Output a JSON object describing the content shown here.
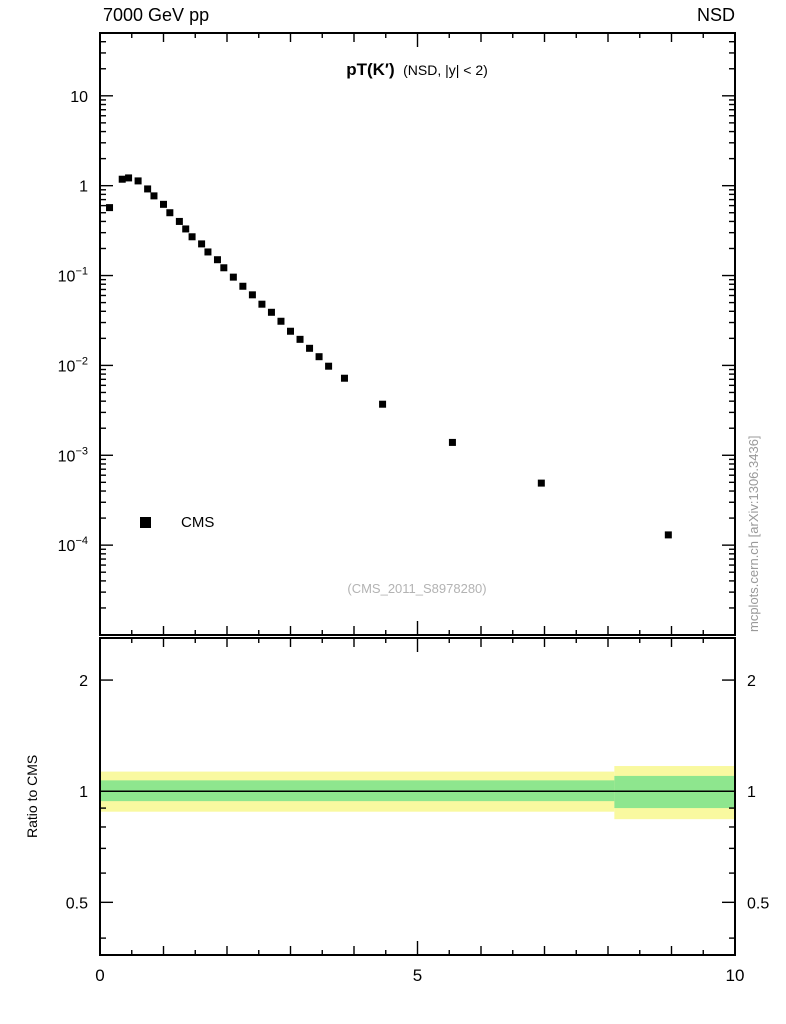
{
  "header": {
    "left": "7000 GeV pp",
    "right": "NSD"
  },
  "title": {
    "main": "pT(K′)",
    "sub": "(NSD, |y| < 2)"
  },
  "legend": {
    "label": "CMS"
  },
  "watermark": "(CMS_2011_S8978280)",
  "side_caption": "mcplots.cern.ch [arXiv:1306.3436]",
  "colors": {
    "marker": "#000000",
    "band_outer": "#f9f9a0",
    "band_inner": "#8ee68e",
    "frame": "#000000",
    "watermark": "#b3b3b3",
    "side_caption": "#999999"
  },
  "chart_data": {
    "type": "scatter",
    "title": "pT(K′) (NSD, |y| < 2)",
    "xlabel": "",
    "x_range": [
      0,
      10
    ],
    "x_ticks": [
      {
        "v": 0,
        "t": "0"
      },
      {
        "v": 5,
        "t": "5"
      },
      {
        "v": 10,
        "t": "10"
      }
    ],
    "legend_position": "lower-left",
    "grid": false,
    "panels": {
      "spectrum": {
        "y_scale": "log",
        "y_range": [
          1e-05,
          50
        ],
        "y_ticks": [
          {
            "v": 10,
            "t": "10"
          },
          {
            "v": 1,
            "t": "1"
          },
          {
            "v": 0.1,
            "t": "10",
            "e": "−1"
          },
          {
            "v": 0.01,
            "t": "10",
            "e": "−2"
          },
          {
            "v": 0.001,
            "t": "10",
            "e": "−3"
          },
          {
            "v": 0.0001,
            "t": "10",
            "e": "−4"
          }
        ],
        "series": [
          {
            "name": "CMS",
            "marker": "filled-square",
            "color": "#000000",
            "x": [
              0.15,
              0.35,
              0.45,
              0.6,
              0.75,
              0.85,
              1.0,
              1.1,
              1.25,
              1.35,
              1.45,
              1.6,
              1.7,
              1.85,
              1.95,
              2.1,
              2.25,
              2.4,
              2.55,
              2.7,
              2.85,
              3.0,
              3.15,
              3.3,
              3.45,
              3.6,
              3.85,
              4.45,
              5.55,
              6.95,
              8.95
            ],
            "y": [
              0.57,
              1.18,
              1.22,
              1.13,
              0.92,
              0.77,
              0.62,
              0.5,
              0.4,
              0.33,
              0.27,
              0.225,
              0.183,
              0.15,
              0.122,
              0.096,
              0.076,
              0.061,
              0.048,
              0.039,
              0.031,
              0.024,
              0.0195,
              0.0155,
              0.0125,
              0.0098,
              0.0072,
              0.0037,
              0.00139,
              0.00049,
              0.00013
            ]
          }
        ]
      },
      "ratio": {
        "ylabel": "Ratio to CMS",
        "y_scale": "log",
        "y_range": [
          0.36,
          2.6
        ],
        "y_ticks": [
          {
            "v": 0.5,
            "t": "0.5"
          },
          {
            "v": 1,
            "t": "1"
          },
          {
            "v": 2,
            "t": "2"
          }
        ],
        "ref_line": 1,
        "bands": [
          {
            "x0": 0,
            "x1": 8.1,
            "outer": [
              0.88,
              1.13
            ],
            "inner": [
              0.94,
              1.07
            ]
          },
          {
            "x0": 8.1,
            "x1": 10,
            "outer": [
              0.84,
              1.17
            ],
            "inner": [
              0.9,
              1.1
            ]
          }
        ]
      }
    }
  }
}
